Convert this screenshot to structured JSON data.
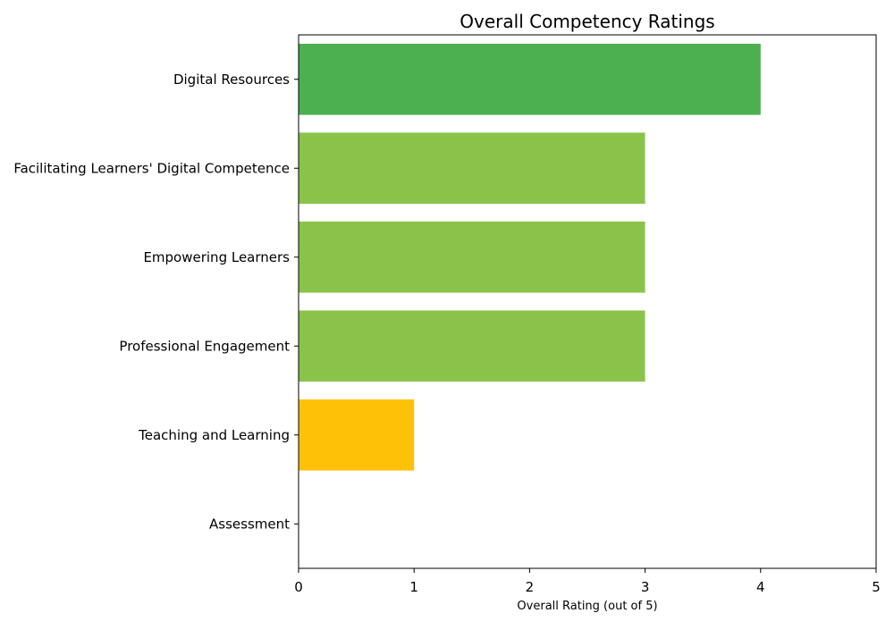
{
  "chart_data": {
    "type": "bar",
    "orientation": "horizontal",
    "title": "Overall Competency Ratings",
    "xlabel": "Overall Rating (out of 5)",
    "ylabel": "",
    "xlim": [
      0,
      5
    ],
    "xticks": [
      "0",
      "1",
      "2",
      "3",
      "4",
      "5"
    ],
    "grid": false,
    "categories": [
      "Digital Resources",
      "Facilitating Learners' Digital Competence",
      "Empowering Learners",
      "Professional Engagement",
      "Teaching and Learning",
      "Assessment"
    ],
    "values": [
      4,
      3,
      3,
      3,
      1,
      0
    ],
    "colors": [
      "#4caf50",
      "#8bc34a",
      "#8bc34a",
      "#8bc34a",
      "#ffc107",
      "#ffc107"
    ]
  }
}
